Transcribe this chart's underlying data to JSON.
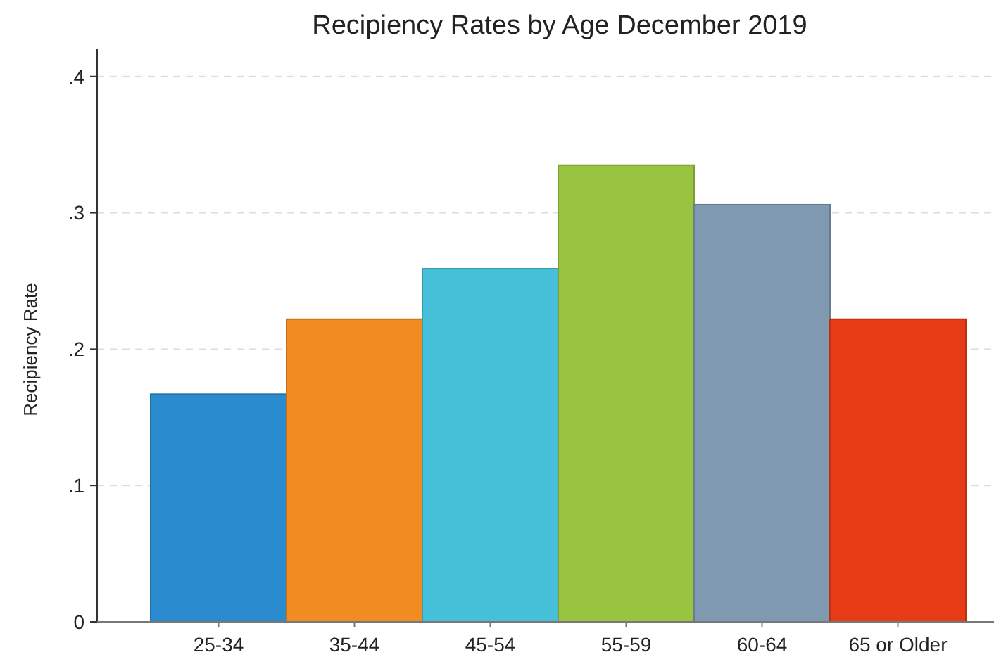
{
  "chart_data": {
    "type": "bar",
    "title": "Recipiency Rates by Age December 2019",
    "ylabel": "Recipiency Rate",
    "categories": [
      "25-34",
      "35-44",
      "45-54",
      "55-59",
      "60-64",
      "65 or Older"
    ],
    "values": [
      0.167,
      0.222,
      0.259,
      0.335,
      0.306,
      0.222
    ],
    "colors": [
      "#2a8ccf",
      "#f28c22",
      "#45c0d8",
      "#99c440",
      "#7f9ab0",
      "#e83c17"
    ],
    "ylim": [
      0,
      0.42
    ],
    "yticks": [
      0,
      {
        "value": 0.1,
        "label": ".1"
      },
      {
        "value": 0.2,
        "label": ".2"
      },
      {
        "value": 0.3,
        "label": ".3"
      },
      {
        "value": 0.4,
        "label": ".4"
      }
    ],
    "grid": "y"
  }
}
